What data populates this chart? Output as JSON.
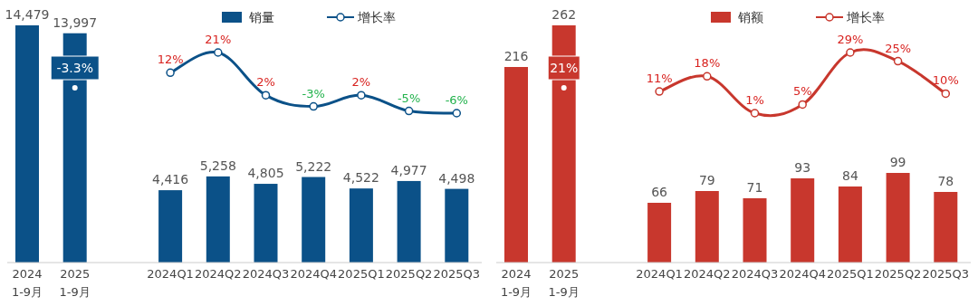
{
  "chart_data": [
    {
      "type": "bar",
      "categories": [
        "2024 1-9月",
        "2025 1-9月",
        null,
        "2024Q1",
        "2024Q2",
        "2024Q3",
        "2024Q4",
        "2025Q1",
        "2025Q2",
        "2025Q3"
      ],
      "data_labels": true,
      "legend": "top",
      "series": [
        {
          "color": "#0b5188",
          "values": [
            14479,
            13997,
            null,
            null,
            null,
            null,
            null,
            null,
            null,
            null
          ],
          "value_labels": [
            "14,479",
            "13,997",
            null,
            null,
            null,
            null,
            null,
            null,
            null,
            null
          ]
        },
        {
          "name": "销量",
          "color": "#0b5188",
          "values": [
            null,
            null,
            null,
            4416,
            5258,
            4805,
            5222,
            4522,
            4977,
            4498
          ],
          "value_labels": [
            null,
            null,
            null,
            "4,416",
            "5,258",
            "4,805",
            "5,222",
            "4,522",
            "4,977",
            "4,498"
          ]
        },
        {
          "name": "增长率",
          "type": "line",
          "axis": "y2",
          "marker": "circle",
          "color": "#0b5188",
          "values": [
            null,
            null,
            null,
            12,
            21,
            2,
            -3,
            2,
            -5,
            -6
          ],
          "value_labels": [
            null,
            null,
            null,
            "12%",
            "21%",
            "2%",
            "-3%",
            "2%",
            "-5%",
            "-6%"
          ]
        }
      ],
      "annotations": [
        "-3.3%"
      ]
    },
    {
      "type": "bar",
      "categories": [
        "2024 1-9月",
        "2025 1-9月",
        null,
        "2024Q1",
        "2024Q2",
        "2024Q3",
        "2024Q4",
        "2025Q1",
        "2025Q2",
        "2025Q3"
      ],
      "data_labels": true,
      "legend": "top",
      "series": [
        {
          "color": "#c8372d",
          "values": [
            216,
            262,
            null,
            null,
            null,
            null,
            null,
            null,
            null,
            null
          ]
        },
        {
          "name": "销额",
          "color": "#c8372d",
          "values": [
            null,
            null,
            null,
            66,
            79,
            71,
            93,
            84,
            99,
            78
          ]
        },
        {
          "name": "增长率",
          "type": "line",
          "axis": "y2",
          "marker": "circle",
          "color": "#c8372d",
          "values": [
            null,
            null,
            null,
            11,
            18,
            1,
            5,
            29,
            25,
            10
          ],
          "value_labels": [
            null,
            null,
            null,
            "11%",
            "18%",
            "1%",
            "5%",
            "29%",
            "25%",
            "10%"
          ]
        }
      ],
      "annotations": [
        "21%"
      ]
    }
  ]
}
